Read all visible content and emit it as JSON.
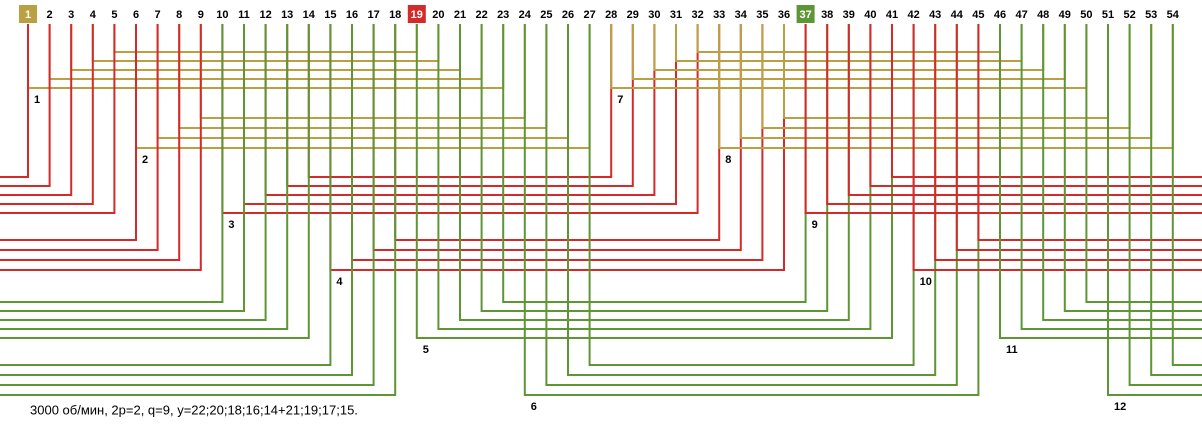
{
  "slots": [
    1,
    2,
    3,
    4,
    5,
    6,
    7,
    8,
    9,
    10,
    11,
    12,
    13,
    14,
    15,
    16,
    17,
    18,
    19,
    20,
    21,
    22,
    23,
    24,
    25,
    26,
    27,
    28,
    29,
    30,
    31,
    32,
    33,
    34,
    35,
    36,
    37,
    38,
    39,
    40,
    41,
    42,
    43,
    44,
    45,
    46,
    47,
    48,
    49,
    50,
    51,
    52,
    53,
    54
  ],
  "groups": [
    1,
    2,
    3,
    4,
    5,
    6,
    7,
    8,
    9,
    10,
    11,
    12
  ],
  "caption": "3000 об/мин, 2р=2, q=9, y=22;20;18;16;14+21;19;17;15."
}
